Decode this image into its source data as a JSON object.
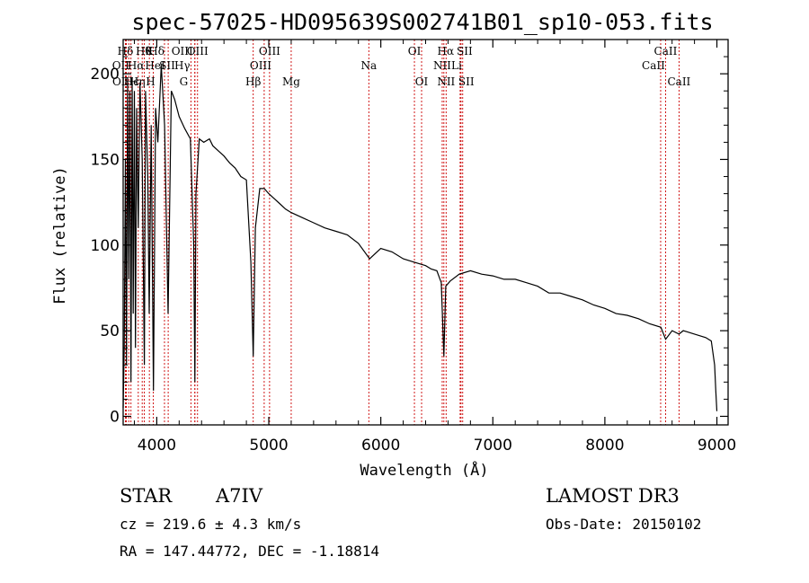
{
  "chart_data": {
    "type": "line",
    "title": "spec-57025-HD095639S002741B01_sp10-053.fits",
    "xlabel": "Wavelength (Å)",
    "ylabel": "Flux (relative)",
    "xlim": [
      3700,
      9100
    ],
    "ylim": [
      -5,
      220
    ],
    "xticks": [
      4000,
      5000,
      6000,
      7000,
      8000,
      9000
    ],
    "yticks": [
      0,
      50,
      100,
      150,
      200
    ],
    "series": [
      {
        "name": "spectrum",
        "x": [
          3700,
          3710,
          3720,
          3730,
          3740,
          3750,
          3760,
          3770,
          3780,
          3790,
          3800,
          3810,
          3820,
          3835,
          3850,
          3870,
          3889,
          3900,
          3920,
          3933,
          3950,
          3970,
          3990,
          4010,
          4040,
          4070,
          4101,
          4130,
          4160,
          4200,
          4250,
          4300,
          4330,
          4340,
          4350,
          4380,
          4420,
          4470,
          4500,
          4550,
          4600,
          4650,
          4700,
          4750,
          4800,
          4840,
          4861,
          4880,
          4920,
          4960,
          5000,
          5050,
          5100,
          5150,
          5200,
          5300,
          5400,
          5500,
          5600,
          5700,
          5800,
          5900,
          6000,
          6100,
          6200,
          6300,
          6400,
          6450,
          6500,
          6540,
          6563,
          6580,
          6620,
          6700,
          6800,
          6900,
          7000,
          7100,
          7200,
          7300,
          7400,
          7500,
          7600,
          7700,
          7800,
          7900,
          8000,
          8100,
          8200,
          8300,
          8400,
          8500,
          8542,
          8600,
          8662,
          8700,
          8800,
          8900,
          8950,
          8980,
          8990,
          9000
        ],
        "y": [
          5,
          40,
          150,
          30,
          195,
          80,
          190,
          20,
          198,
          60,
          190,
          40,
          180,
          110,
          195,
          150,
          30,
          190,
          140,
          60,
          170,
          15,
          180,
          160,
          205,
          170,
          60,
          190,
          185,
          175,
          168,
          162,
          100,
          20,
          130,
          162,
          160,
          162,
          158,
          155,
          152,
          148,
          145,
          140,
          138,
          90,
          35,
          110,
          133,
          133,
          130,
          127,
          124,
          121,
          119,
          116,
          113,
          110,
          108,
          106,
          101,
          92,
          98,
          96,
          92,
          90,
          88,
          86,
          85,
          78,
          35,
          76,
          79,
          83,
          85,
          83,
          82,
          80,
          80,
          78,
          76,
          72,
          72,
          70,
          68,
          65,
          63,
          60,
          59,
          57,
          54,
          52,
          45,
          50,
          48,
          50,
          48,
          46,
          44,
          30,
          15,
          3
        ]
      }
    ],
    "lines": [
      {
        "label": "Hδ",
        "x": 3720,
        "row": 1,
        "dx": 0
      },
      {
        "label": "OII",
        "x": 3727,
        "row": 2,
        "dx": -6
      },
      {
        "label": "OII",
        "x": 3729,
        "row": 3,
        "dx": -6
      },
      {
        "label": "Hϵ",
        "x": 3750,
        "row": 3,
        "dx": 3
      },
      {
        "label": "Hη",
        "x": 3770,
        "row": 3,
        "dx": 7
      },
      {
        "label": "Hθ",
        "x": 3835,
        "row": 1,
        "dx": 6
      },
      {
        "label": "Hα",
        "x": 3870,
        "row": 2,
        "dx": -7
      },
      {
        "label": "HeI",
        "x": 3889,
        "row": 2,
        "dx": 12
      },
      {
        "label": "K",
        "x": 3934,
        "row": 1,
        "dx": 0
      },
      {
        "label": "H",
        "x": 3969,
        "row": 3,
        "dx": -3
      },
      {
        "label": "Hδ",
        "x": 4102,
        "row": 1,
        "dx": -13
      },
      {
        "label": "SII",
        "x": 4069,
        "row": 2,
        "dx": 3
      },
      {
        "label": "OIII",
        "x": 4340,
        "row": 1,
        "dx": -14
      },
      {
        "label": "Hγ",
        "x": 4340,
        "row": 2,
        "dx": -14
      },
      {
        "label": "G",
        "x": 4305,
        "row": 3,
        "dx": -8
      },
      {
        "label": "OIII",
        "x": 4364,
        "row": 1,
        "dx": 0
      },
      {
        "label": "Hβ",
        "x": 4861,
        "row": 3,
        "dx": 0
      },
      {
        "label": "OIII",
        "x": 4959,
        "row": 2,
        "dx": -4
      },
      {
        "label": "OIII",
        "x": 5007,
        "row": 1,
        "dx": 0
      },
      {
        "label": "Mg",
        "x": 5200,
        "row": 3,
        "dx": 0
      },
      {
        "label": "Na",
        "x": 5893,
        "row": 2,
        "dx": 0
      },
      {
        "label": "OI",
        "x": 6300,
        "row": 1,
        "dx": 0
      },
      {
        "label": "OI",
        "x": 6364,
        "row": 3,
        "dx": 0
      },
      {
        "label": "NII",
        "x": 6548,
        "row": 2,
        "dx": 0
      },
      {
        "label": "NII",
        "x": 6583,
        "row": 3,
        "dx": 0
      },
      {
        "label": "Hα",
        "x": 6563,
        "row": 1,
        "dx": 2
      },
      {
        "label": "Li",
        "x": 6708,
        "row": 2,
        "dx": -4
      },
      {
        "label": "SII",
        "x": 6716,
        "row": 1,
        "dx": 4
      },
      {
        "label": "SII",
        "x": 6731,
        "row": 3,
        "dx": 4
      },
      {
        "label": "CaII",
        "x": 8498,
        "row": 2,
        "dx": -8
      },
      {
        "label": "CaII",
        "x": 8542,
        "row": 1,
        "dx": 0
      },
      {
        "label": "CaII",
        "x": 8662,
        "row": 3,
        "dx": 0
      }
    ]
  },
  "info": {
    "object_class": "STAR",
    "subclass": "A7IV",
    "survey": "LAMOST DR3",
    "cz": "cz = 219.6 ± 4.3 km/s",
    "obs_date": "Obs-Date: 20150102",
    "coords": "RA = 147.44772, DEC =  -1.18814"
  }
}
